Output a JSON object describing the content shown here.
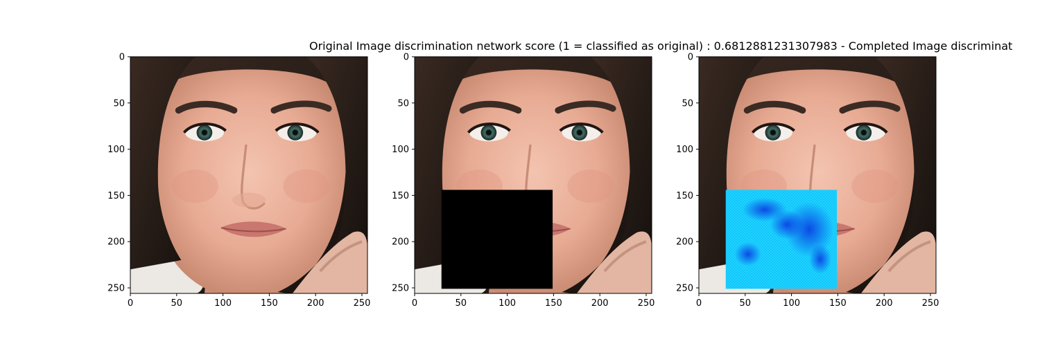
{
  "figure": {
    "title": "Original Image discrimination network score (1 = classified as original) : 0.6812881231307983 - Completed Image discriminat"
  },
  "chart_data": [
    {
      "type": "image",
      "panel": "original",
      "image_size": [
        256,
        256
      ],
      "xlim": [
        0,
        256
      ],
      "ylim": [
        256,
        0
      ],
      "xticks": [
        0,
        50,
        100,
        150,
        200,
        250
      ],
      "yticks": [
        0,
        50,
        100,
        150,
        200,
        250
      ],
      "mask": null
    },
    {
      "type": "image",
      "panel": "masked",
      "image_size": [
        256,
        256
      ],
      "xlim": [
        0,
        256
      ],
      "ylim": [
        256,
        0
      ],
      "xticks": [
        0,
        50,
        100,
        150,
        200,
        250
      ],
      "yticks": [
        0,
        50,
        100,
        150,
        200,
        250
      ],
      "mask": {
        "x": [
          29,
          149
        ],
        "y": [
          144,
          251
        ],
        "fill": "#000000"
      }
    },
    {
      "type": "image",
      "panel": "completed",
      "image_size": [
        256,
        256
      ],
      "xlim": [
        0,
        256
      ],
      "ylim": [
        256,
        0
      ],
      "xticks": [
        0,
        50,
        100,
        150,
        200,
        250
      ],
      "yticks": [
        0,
        50,
        100,
        150,
        200,
        250
      ],
      "mask": {
        "x": [
          29,
          149
        ],
        "y": [
          144,
          251
        ],
        "fill": "#1ad6ff",
        "dark_fill": "#0a2fe0"
      }
    }
  ]
}
